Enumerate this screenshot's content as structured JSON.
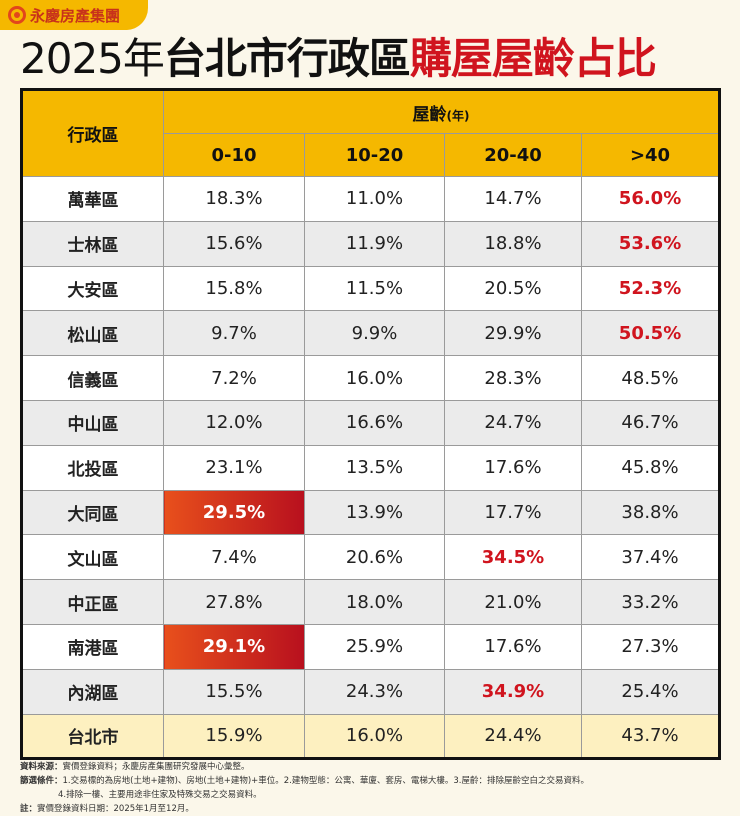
{
  "brand": {
    "name": "永慶房產集團"
  },
  "title": {
    "part1": "2025年",
    "part2": "台北市行政區",
    "part3": "購屋屋齡占比"
  },
  "table": {
    "district_header": "行政區",
    "age_header": "屋齡",
    "age_unit": "(年)",
    "columns": [
      "0-10",
      "10-20",
      "20-40",
      ">40"
    ],
    "rows": [
      {
        "district": "萬華區",
        "values": [
          "18.3%",
          "11.0%",
          "14.7%",
          "56.0%"
        ],
        "red": [
          3
        ],
        "highlight": []
      },
      {
        "district": "士林區",
        "values": [
          "15.6%",
          "11.9%",
          "18.8%",
          "53.6%"
        ],
        "red": [
          3
        ],
        "highlight": []
      },
      {
        "district": "大安區",
        "values": [
          "15.8%",
          "11.5%",
          "20.5%",
          "52.3%"
        ],
        "red": [
          3
        ],
        "highlight": []
      },
      {
        "district": "松山區",
        "values": [
          "9.7%",
          "9.9%",
          "29.9%",
          "50.5%"
        ],
        "red": [
          3
        ],
        "highlight": []
      },
      {
        "district": "信義區",
        "values": [
          "7.2%",
          "16.0%",
          "28.3%",
          "48.5%"
        ],
        "red": [],
        "highlight": []
      },
      {
        "district": "中山區",
        "values": [
          "12.0%",
          "16.6%",
          "24.7%",
          "46.7%"
        ],
        "red": [],
        "highlight": []
      },
      {
        "district": "北投區",
        "values": [
          "23.1%",
          "13.5%",
          "17.6%",
          "45.8%"
        ],
        "red": [],
        "highlight": []
      },
      {
        "district": "大同區",
        "values": [
          "29.5%",
          "13.9%",
          "17.7%",
          "38.8%"
        ],
        "red": [],
        "highlight": [
          0
        ]
      },
      {
        "district": "文山區",
        "values": [
          "7.4%",
          "20.6%",
          "34.5%",
          "37.4%"
        ],
        "red": [
          2
        ],
        "highlight": []
      },
      {
        "district": "中正區",
        "values": [
          "27.8%",
          "18.0%",
          "21.0%",
          "33.2%"
        ],
        "red": [],
        "highlight": []
      },
      {
        "district": "南港區",
        "values": [
          "29.1%",
          "25.9%",
          "17.6%",
          "27.3%"
        ],
        "red": [],
        "highlight": [
          0
        ]
      },
      {
        "district": "內湖區",
        "values": [
          "15.5%",
          "24.3%",
          "34.9%",
          "25.4%"
        ],
        "red": [
          2
        ],
        "highlight": []
      }
    ],
    "total": {
      "district": "台北市",
      "values": [
        "15.9%",
        "16.0%",
        "24.4%",
        "43.7%"
      ]
    }
  },
  "colors": {
    "header": "#f5b800",
    "red_text": "#d0141e",
    "highlight": "#c8201e",
    "total_row": "#fdf0c0"
  },
  "notes": {
    "source_label": "資料來源：",
    "source": "實價登錄資料；永慶房產集團研究發展中心彙整。",
    "filter_label": "篩選條件：",
    "filter1": "1.交易標的為房地(土地+建物)、房地(土地+建物)+車位。2.建物型態：公寓、華廈、套房、電梯大樓。3.屋齡：排除屋齡空白之交易資料。",
    "filter2": "4.排除一樓、主要用途非住家及特殊交易之交易資料。",
    "note_label": "註：",
    "note": "實價登錄資料日期：2025年1月至12月。"
  }
}
